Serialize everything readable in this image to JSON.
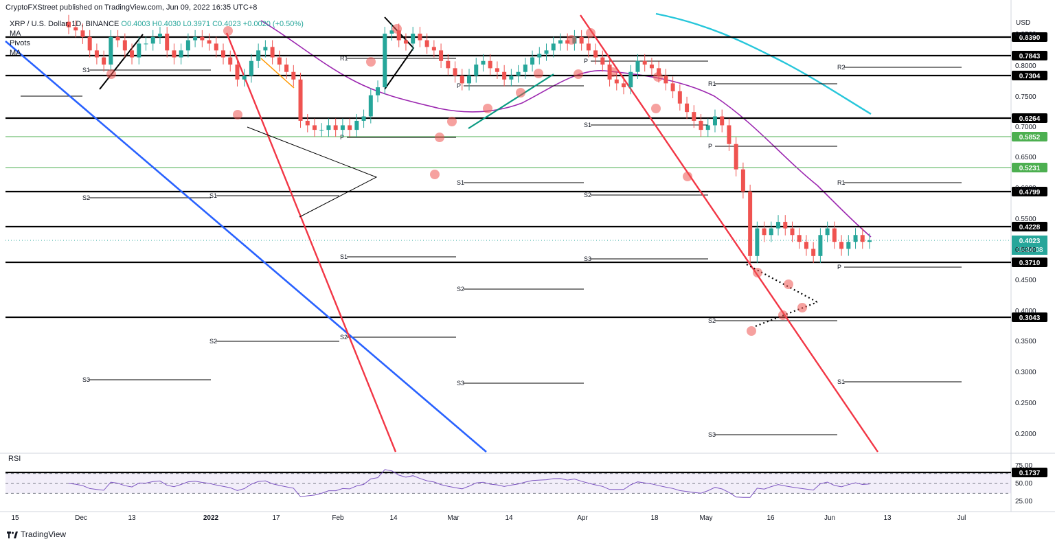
{
  "header": {
    "published": "CryptoFXStreet published on TradingView.com, Jun 09, 2022 16:35 UTC+8",
    "symbol_line": "XRP / U.S. Dollar, 1D, BINANCE",
    "ohlc": "O0.4003 H0.4030 L0.3971 C0.4023 +0.0020 (+0.50%)",
    "indicators": [
      "MA",
      "Pivots",
      "MA"
    ]
  },
  "axis": {
    "currency": "USD",
    "price_ticks": [
      "0.8500",
      "0.8000",
      "0.7500",
      "0.7000",
      "0.6500",
      "0.6000",
      "0.5500",
      "0.5000",
      "0.4500",
      "0.4000",
      "0.3500",
      "0.3000",
      "0.2500",
      "0.2000"
    ],
    "time_ticks": [
      "15",
      "Dec",
      "13",
      "2022",
      "17",
      "Feb",
      "14",
      "Mar",
      "14",
      "Apr",
      "18",
      "May",
      "16",
      "Jun",
      "13",
      "Jul"
    ],
    "rsi_ticks": [
      "75.00",
      "50.00",
      "25.00"
    ]
  },
  "current": {
    "price": "0.4023",
    "countdown": "15:24:08",
    "color": "#26a69a"
  },
  "levels": [
    {
      "label": "0.8390",
      "color": "#000000"
    },
    {
      "label": "0.7843",
      "color": "#000000"
    },
    {
      "label": "0.7304",
      "color": "#000000"
    },
    {
      "label": "0.6264",
      "color": "#000000"
    },
    {
      "label": "0.5852",
      "color": "#4caf50"
    },
    {
      "label": "0.5231",
      "color": "#4caf50"
    },
    {
      "label": "0.4799",
      "color": "#000000"
    },
    {
      "label": "0.4228",
      "color": "#000000"
    },
    {
      "label": "0.3710",
      "color": "#000000"
    },
    {
      "label": "0.3043",
      "color": "#000000"
    },
    {
      "label": "0.1737",
      "color": "#000000"
    }
  ],
  "pivot_labels": [
    "S1",
    "S2",
    "S3",
    "P",
    "R1",
    "R2",
    "S1",
    "S2",
    "S3",
    "P",
    "R1",
    "S1",
    "S2",
    "S3",
    "P",
    "R1",
    "S1",
    "S2",
    "S3",
    "P",
    "R1",
    "R2",
    "S1",
    "S2",
    "S3",
    "P"
  ],
  "rsi": {
    "label": "RSI"
  },
  "footer": {
    "brand": "TradingView"
  },
  "colors": {
    "up": "#26a69a",
    "down": "#ef5350",
    "ma_fast": "#9c27b0",
    "ma_slow": "#26c6da",
    "trend_red": "#f23645",
    "trend_blue": "#2962ff"
  },
  "chart_data": {
    "type": "candlestick",
    "title": "XRP / U.S. Dollar, 1D, BINANCE",
    "ylabel": "USD",
    "ylim": [
      0.17,
      0.87
    ],
    "y_scale": "log",
    "horizontal_levels": [
      0.839,
      0.7843,
      0.7304,
      0.6264,
      0.5852,
      0.5231,
      0.4799,
      0.4228,
      0.371,
      0.3043,
      0.1737
    ],
    "series": [
      {
        "name": "Close",
        "x_start": "Nov 2021",
        "x_end": "Jun 09, 2022",
        "values": [
          0.87,
          0.86,
          0.84,
          0.8,
          0.78,
          0.76,
          0.84,
          0.83,
          0.8,
          0.78,
          0.82,
          0.82,
          0.84,
          0.85,
          0.8,
          0.78,
          0.8,
          0.83,
          0.84,
          0.83,
          0.82,
          0.8,
          0.78,
          0.76,
          0.72,
          0.73,
          0.77,
          0.8,
          0.81,
          0.78,
          0.76,
          0.74,
          0.72,
          0.62,
          0.61,
          0.6,
          0.6,
          0.61,
          0.6,
          0.61,
          0.6,
          0.62,
          0.63,
          0.68,
          0.7,
          0.85,
          0.86,
          0.83,
          0.82,
          0.85,
          0.83,
          0.81,
          0.8,
          0.77,
          0.75,
          0.73,
          0.71,
          0.73,
          0.76,
          0.77,
          0.75,
          0.74,
          0.72,
          0.73,
          0.74,
          0.76,
          0.78,
          0.79,
          0.8,
          0.82,
          0.83,
          0.82,
          0.84,
          0.82,
          0.8,
          0.78,
          0.76,
          0.72,
          0.71,
          0.7,
          0.74,
          0.77,
          0.76,
          0.75,
          0.73,
          0.71,
          0.69,
          0.66,
          0.64,
          0.62,
          0.6,
          0.61,
          0.63,
          0.61,
          0.57,
          0.52,
          0.48,
          0.38,
          0.42,
          0.41,
          0.42,
          0.43,
          0.42,
          0.41,
          0.4,
          0.39,
          0.38,
          0.41,
          0.42,
          0.4,
          0.39,
          0.4,
          0.41,
          0.4,
          0.4023
        ]
      }
    ],
    "rsi": {
      "ylim": [
        0,
        100
      ],
      "levels": [
        70,
        50,
        30
      ],
      "last": 43
    }
  }
}
